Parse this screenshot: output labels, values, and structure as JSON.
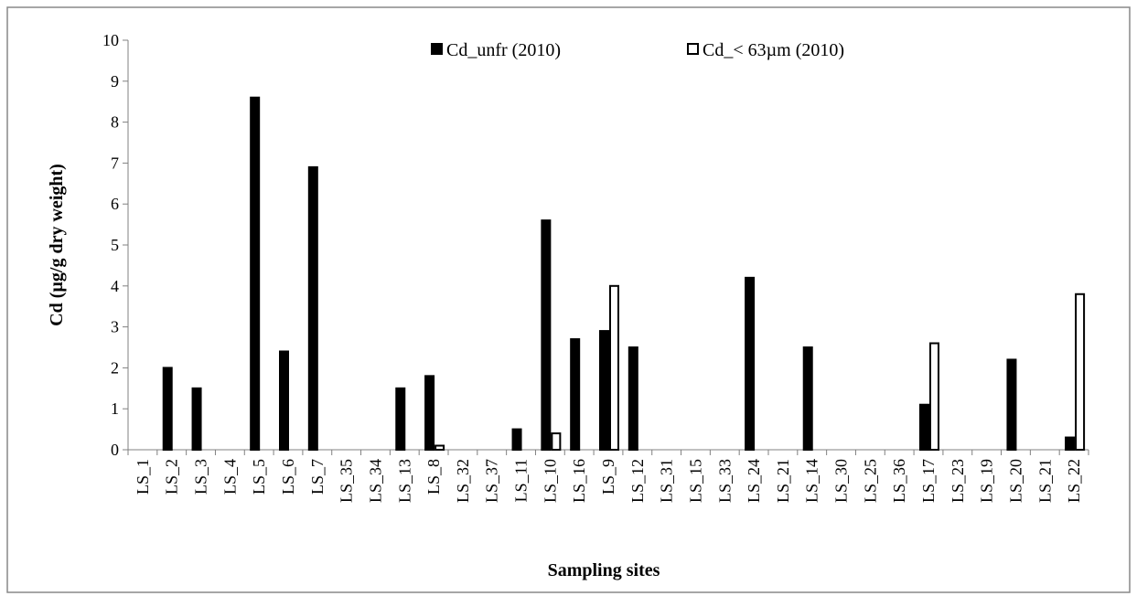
{
  "chart_data": {
    "type": "bar",
    "y_label": "Cd  (µg/g dry weight)",
    "x_label": "Sampling sites",
    "categories": [
      "LS_1",
      "LS_2",
      "LS_3",
      "LS_4",
      "LS_5",
      "LS_6",
      "LS_7",
      "LS_35",
      "LS_34",
      "LS_13",
      "LS_8",
      "LS_32",
      "LS_37",
      "LS_11",
      "LS_10",
      "LS_16",
      "LS_9",
      "LS_12",
      "LS_31",
      "LS_15",
      "LS_33",
      "LS_24",
      "LS_21",
      "LS_14",
      "LS_30",
      "LS_25",
      "LS_36",
      "LS_17",
      "LS_23",
      "LS_19",
      "LS_20",
      "LS_21",
      "LS_22"
    ],
    "series": [
      {
        "name": "Cd_unfr (2010)",
        "color": "#000000",
        "values": [
          null,
          2.0,
          1.5,
          null,
          8.6,
          2.4,
          6.9,
          null,
          null,
          1.5,
          1.8,
          null,
          null,
          0.5,
          5.6,
          2.7,
          2.9,
          2.5,
          null,
          null,
          null,
          4.2,
          null,
          2.5,
          null,
          null,
          null,
          1.1,
          null,
          null,
          2.2,
          null,
          0.3
        ]
      },
      {
        "name": "Cd_< 63µm (2010)",
        "color": "#ffffff",
        "values": [
          null,
          null,
          null,
          null,
          null,
          null,
          null,
          null,
          null,
          null,
          0.1,
          null,
          null,
          null,
          0.4,
          null,
          4.0,
          null,
          null,
          null,
          null,
          null,
          null,
          null,
          null,
          null,
          null,
          2.6,
          null,
          null,
          null,
          null,
          3.8
        ]
      }
    ],
    "ylim": [
      0,
      10
    ],
    "yticks": [
      0,
      1,
      2,
      3,
      4,
      5,
      6,
      7,
      8,
      9,
      10
    ]
  }
}
